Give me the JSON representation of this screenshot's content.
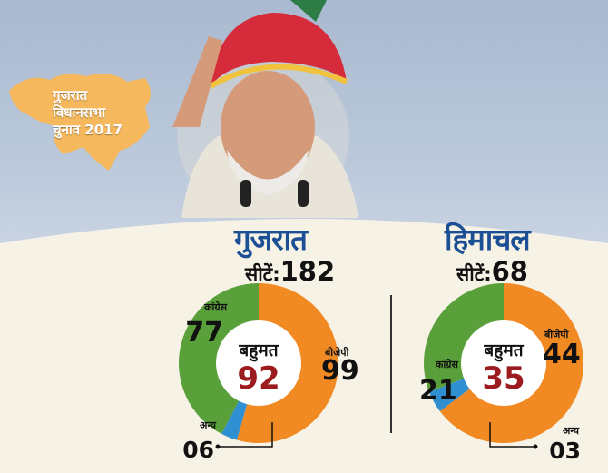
{
  "map_caption": {
    "line1": "गुजरात",
    "line2": "विधानसभा",
    "line3": "चुनाव 2017"
  },
  "colors": {
    "bjp": "#f28a24",
    "congress": "#5aa03a",
    "others": "#2f8fd0",
    "majority": "#9b1b1e",
    "title": "#1d4f95"
  },
  "chart_data": [
    {
      "type": "pie",
      "title": "गुजरात",
      "seats_label": "सीटें:",
      "seats_total": "182",
      "center_label": "बहुमत",
      "majority": "92",
      "slices": [
        {
          "name": "बीजेपी",
          "value": 99,
          "label": "99"
        },
        {
          "name": "अन्य",
          "value": 6,
          "label": "06"
        },
        {
          "name": "कांग्रेस",
          "value": 77,
          "label": "77"
        }
      ]
    },
    {
      "type": "pie",
      "title": "हिमाचल",
      "seats_label": "सीटें:",
      "seats_total": "68",
      "center_label": "बहुमत",
      "majority": "35",
      "slices": [
        {
          "name": "बीजेपी",
          "value": 44,
          "label": "44"
        },
        {
          "name": "अन्य",
          "value": 3,
          "label": "03"
        },
        {
          "name": "कांग्रेस",
          "value": 21,
          "label": "21"
        }
      ]
    }
  ]
}
